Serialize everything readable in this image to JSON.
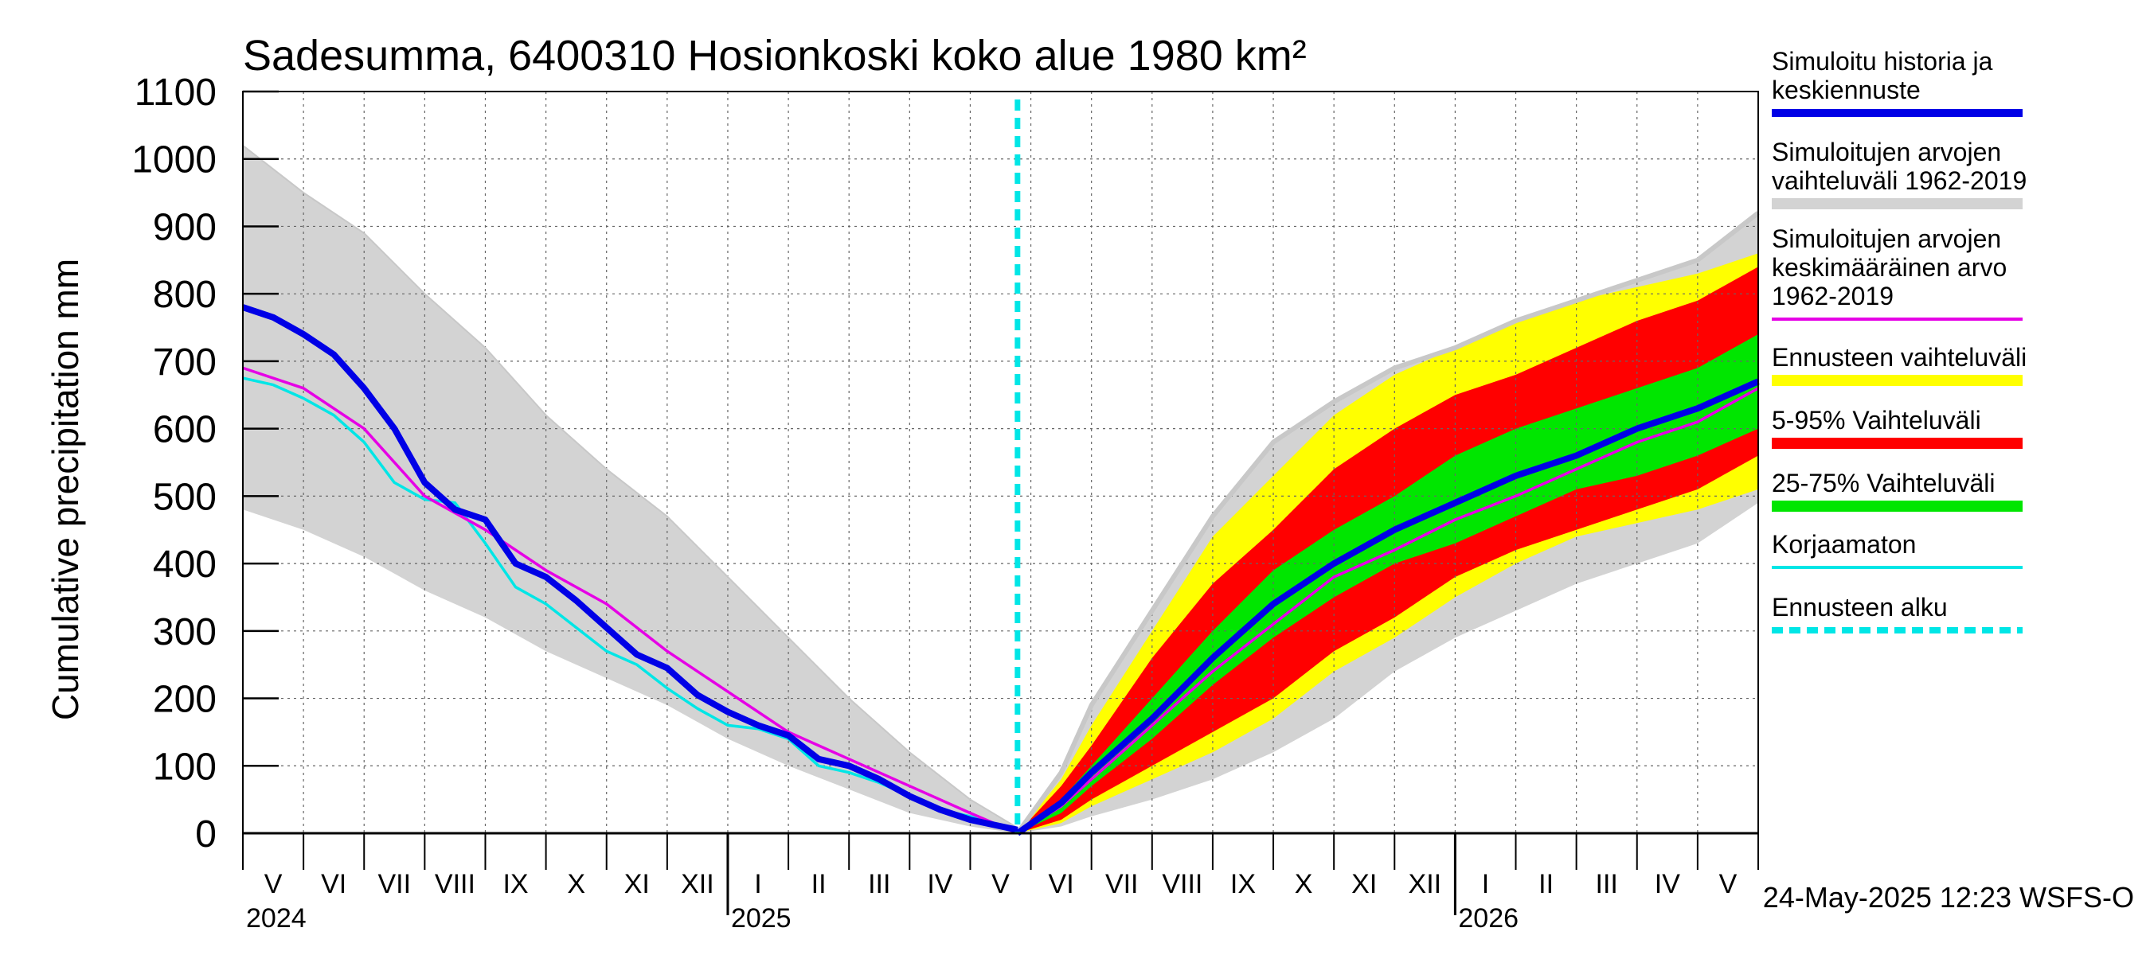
{
  "chart_data": {
    "type": "area",
    "title": "Sadesumma, 6400310 Hosionkoski koko alue 1980 km²",
    "ylabel": "Cumulative precipitation   mm",
    "ylim": [
      0,
      1100
    ],
    "yticks": [
      0,
      100,
      200,
      300,
      400,
      500,
      600,
      700,
      800,
      900,
      1000,
      1100
    ],
    "ytick_labels": [
      "0",
      "100",
      "200",
      "300",
      "400",
      "500",
      "600",
      "700",
      "800",
      "900",
      "1000",
      "1100"
    ],
    "x_domain_months": [
      0,
      25
    ],
    "forecast_start_month": 12.78,
    "month_labels": [
      {
        "label": "V",
        "mid": 0.5
      },
      {
        "label": "VI",
        "mid": 1.5
      },
      {
        "label": "VII",
        "mid": 2.5
      },
      {
        "label": "VIII",
        "mid": 3.5
      },
      {
        "label": "IX",
        "mid": 4.5
      },
      {
        "label": "X",
        "mid": 5.5
      },
      {
        "label": "XI",
        "mid": 6.5
      },
      {
        "label": "XII",
        "mid": 7.5
      },
      {
        "label": "I",
        "mid": 8.5
      },
      {
        "label": "II",
        "mid": 9.5
      },
      {
        "label": "III",
        "mid": 10.5
      },
      {
        "label": "IV",
        "mid": 11.5
      },
      {
        "label": "V",
        "mid": 12.5
      },
      {
        "label": "VI",
        "mid": 13.5
      },
      {
        "label": "VII",
        "mid": 14.5
      },
      {
        "label": "VIII",
        "mid": 15.5
      },
      {
        "label": "IX",
        "mid": 16.5
      },
      {
        "label": "X",
        "mid": 17.5
      },
      {
        "label": "XI",
        "mid": 18.5
      },
      {
        "label": "XII",
        "mid": 19.5
      },
      {
        "label": "I",
        "mid": 20.5
      },
      {
        "label": "II",
        "mid": 21.5
      },
      {
        "label": "III",
        "mid": 22.5
      },
      {
        "label": "IV",
        "mid": 23.5
      },
      {
        "label": "V",
        "mid": 24.5
      }
    ],
    "year_labels": [
      {
        "label": "2024",
        "at": 0
      },
      {
        "label": "2025",
        "at": 8
      },
      {
        "label": "2026",
        "at": 20
      }
    ],
    "year_boundaries": [
      8,
      20
    ],
    "series": {
      "hist_range_upper": {
        "x": [
          0,
          1,
          2,
          3,
          4,
          5,
          6,
          7,
          8,
          9,
          10,
          11,
          12,
          12.78
        ],
        "y": [
          1020,
          950,
          890,
          800,
          720,
          620,
          540,
          470,
          380,
          290,
          200,
          120,
          50,
          8
        ]
      },
      "hist_range_lower": {
        "x": [
          0,
          1,
          2,
          3,
          4,
          5,
          6,
          7,
          8,
          9,
          10,
          11,
          12,
          12.78
        ],
        "y": [
          480,
          450,
          410,
          360,
          320,
          270,
          230,
          190,
          140,
          100,
          65,
          30,
          10,
          0
        ]
      },
      "simulated_history": {
        "x": [
          0,
          0.5,
          1,
          1.5,
          2,
          2.5,
          3,
          3.5,
          4,
          4.5,
          5,
          5.5,
          6,
          6.5,
          7,
          7.5,
          8,
          8.5,
          9,
          9.5,
          10,
          10.5,
          11,
          11.5,
          12,
          12.78
        ],
        "y": [
          780,
          765,
          740,
          710,
          660,
          600,
          520,
          480,
          465,
          400,
          380,
          345,
          305,
          265,
          245,
          205,
          180,
          160,
          145,
          110,
          100,
          80,
          55,
          35,
          20,
          5
        ]
      },
      "mean_1962_2019_hist": {
        "x": [
          0,
          1,
          2,
          3,
          4,
          5,
          6,
          7,
          8,
          9,
          10,
          11,
          12,
          12.78
        ],
        "y": [
          690,
          660,
          600,
          500,
          450,
          390,
          340,
          270,
          210,
          150,
          110,
          70,
          30,
          0
        ]
      },
      "uncorrected": {
        "x": [
          0,
          0.5,
          1,
          1.5,
          2,
          2.5,
          3,
          3.5,
          4,
          4.5,
          5,
          5.5,
          6,
          6.5,
          7,
          7.5,
          8,
          8.5,
          9,
          9.5,
          10,
          10.5,
          11,
          11.5,
          12,
          12.78
        ],
        "y": [
          675,
          665,
          645,
          620,
          580,
          520,
          495,
          490,
          430,
          365,
          340,
          305,
          270,
          250,
          215,
          185,
          160,
          155,
          140,
          100,
          90,
          75,
          55,
          35,
          25,
          5
        ]
      },
      "hist_range_fc_upper": {
        "x": [
          12.78,
          13.5,
          14,
          15,
          16,
          17,
          18,
          19,
          20,
          21,
          22,
          23,
          24,
          25
        ],
        "y": [
          0,
          90,
          190,
          330,
          470,
          580,
          640,
          690,
          720,
          760,
          790,
          820,
          850,
          920
        ]
      },
      "hist_range_fc_lower": {
        "x": [
          12.78,
          13.5,
          14,
          15,
          16,
          17,
          18,
          19,
          20,
          21,
          22,
          23,
          24,
          25
        ],
        "y": [
          0,
          10,
          25,
          50,
          80,
          120,
          170,
          240,
          290,
          330,
          370,
          400,
          430,
          490
        ]
      },
      "fc_range_upper": {
        "x": [
          12.78,
          13.5,
          14,
          15,
          16,
          17,
          18,
          19,
          20,
          21,
          22,
          23,
          24,
          25
        ],
        "y": [
          0,
          80,
          160,
          300,
          440,
          530,
          620,
          680,
          720,
          760,
          790,
          810,
          830,
          860
        ]
      },
      "fc_range_lower": {
        "x": [
          12.78,
          13.5,
          14,
          15,
          16,
          17,
          18,
          19,
          20,
          21,
          22,
          23,
          24,
          25
        ],
        "y": [
          0,
          15,
          40,
          80,
          120,
          170,
          240,
          290,
          350,
          400,
          440,
          460,
          480,
          510
        ]
      },
      "p5_95_upper": {
        "x": [
          12.78,
          13.5,
          14,
          15,
          16,
          17,
          18,
          19,
          20,
          21,
          22,
          23,
          24,
          25
        ],
        "y": [
          0,
          70,
          130,
          260,
          370,
          450,
          540,
          600,
          650,
          680,
          720,
          760,
          790,
          840
        ]
      },
      "p5_95_lower": {
        "x": [
          12.78,
          13.5,
          14,
          15,
          16,
          17,
          18,
          19,
          20,
          21,
          22,
          23,
          24,
          25
        ],
        "y": [
          0,
          20,
          50,
          100,
          150,
          200,
          270,
          320,
          380,
          420,
          450,
          480,
          510,
          560
        ]
      },
      "p25_75_upper": {
        "x": [
          12.78,
          13.5,
          14,
          15,
          16,
          17,
          18,
          19,
          20,
          21,
          22,
          23,
          24,
          25
        ],
        "y": [
          0,
          50,
          100,
          200,
          300,
          390,
          450,
          500,
          560,
          600,
          630,
          660,
          690,
          740
        ]
      },
      "p25_75_lower": {
        "x": [
          12.78,
          13.5,
          14,
          15,
          16,
          17,
          18,
          19,
          20,
          21,
          22,
          23,
          24,
          25
        ],
        "y": [
          0,
          30,
          70,
          140,
          220,
          290,
          350,
          400,
          430,
          470,
          510,
          530,
          560,
          600
        ]
      },
      "forecast_median": {
        "x": [
          12.78,
          13.5,
          14,
          15,
          16,
          17,
          18,
          19,
          20,
          21,
          22,
          23,
          24,
          25
        ],
        "y": [
          0,
          45,
          90,
          170,
          260,
          340,
          400,
          450,
          490,
          530,
          560,
          600,
          630,
          670
        ]
      },
      "mean_1962_2019_fc": {
        "x": [
          12.78,
          13.5,
          14,
          15,
          16,
          17,
          18,
          19,
          20,
          21,
          22,
          23,
          24,
          25
        ],
        "y": [
          0,
          40,
          80,
          160,
          240,
          310,
          380,
          420,
          465,
          500,
          540,
          580,
          610,
          660
        ]
      }
    },
    "legend_position": "right",
    "legend": [
      {
        "text": "Simuloitu historia ja keskiennuste",
        "color": "#0000e6",
        "style": "line-thick"
      },
      {
        "text": "Simuloitujen arvojen vaihteluväli 1962-2019",
        "color": "#d3d3d3",
        "style": "band"
      },
      {
        "text": "Simuloitujen arvojen keskimääräinen arvo 1962-2019",
        "color": "#e600e6",
        "style": "line"
      },
      {
        "text": "Ennusteen vaihteluväli",
        "color": "#ffff00",
        "style": "band"
      },
      {
        "text": "5-95% Vaihteluväli",
        "color": "#ff0000",
        "style": "band"
      },
      {
        "text": "25-75% Vaihteluväli",
        "color": "#00e600",
        "style": "band"
      },
      {
        "text": "Korjaamaton",
        "color": "#00e6e6",
        "style": "line"
      },
      {
        "text": "Ennusteen alku",
        "color": "#00e6e6",
        "style": "dashed"
      }
    ],
    "footer": "24-May-2025 12:23 WSFS-O"
  }
}
